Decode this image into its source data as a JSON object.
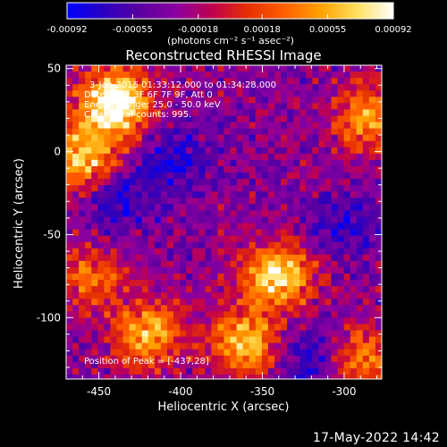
{
  "chart_data": {
    "type": "heatmap",
    "title": "Reconstructed RHESSI Image",
    "xlabel": "Heliocentric X (arcsec)",
    "ylabel": "Heliocentric Y (arcsec)",
    "xlim": [
      -470,
      -277
    ],
    "ylim": [
      -137,
      52
    ],
    "x_ticks": [
      -450,
      -400,
      -350,
      -300
    ],
    "x_tick_labels": [
      "-450",
      "-400",
      "-350",
      "-300"
    ],
    "y_ticks": [
      50,
      0,
      -50,
      -100
    ],
    "y_tick_labels": [
      "50",
      "0",
      "-50",
      "-100"
    ],
    "colorbar": {
      "range": [
        -0.00092,
        0.00092
      ],
      "ticks": [
        -0.00092,
        -0.00055,
        -0.00018,
        0.00018,
        0.00055,
        0.00092
      ],
      "tick_labels": [
        "-0.00092",
        "-0.00055",
        "-0.00018",
        "0.00018",
        "0.00055",
        "0.00092"
      ],
      "unit_label": "(photons cm⁻² s⁻¹ asec⁻²)",
      "colormap": [
        "#0000ff",
        "#2a00c0",
        "#5a00a0",
        "#8a00a0",
        "#c00050",
        "#e63000",
        "#ff6000",
        "#ffa000",
        "#ffe060",
        "#ffffff"
      ]
    },
    "annotations": [
      "3-Jan-2015 01:33:12.000 to 01:34:28.000",
      "Detectors: 3F 6F 7F 9F, Att 0",
      "Energy Range: 25.0 - 50.0 keV",
      "Clean    Total counts: 995."
    ],
    "peak_label": "Position of Peak = [-437,28]",
    "peak": [
      -437,
      28
    ],
    "bright_regions": [
      {
        "x": -440,
        "y": 30,
        "intensity": 1.0
      },
      {
        "x": -460,
        "y": -5,
        "intensity": 0.75
      },
      {
        "x": -340,
        "y": -75,
        "intensity": 0.8
      },
      {
        "x": -360,
        "y": -115,
        "intensity": 0.7
      },
      {
        "x": -420,
        "y": -110,
        "intensity": 0.65
      },
      {
        "x": -285,
        "y": 20,
        "intensity": 0.6
      },
      {
        "x": -290,
        "y": -125,
        "intensity": 0.55
      },
      {
        "x": -455,
        "y": -75,
        "intensity": 0.45
      }
    ],
    "dim_regions": [
      {
        "x": -440,
        "y": -30,
        "intensity": 0.1
      },
      {
        "x": -405,
        "y": -5,
        "intensity": 0.12
      },
      {
        "x": -320,
        "y": -125,
        "intensity": 0.08
      },
      {
        "x": -300,
        "y": -45,
        "intensity": 0.15
      }
    ]
  },
  "footer": {
    "timestamp": "17-May-2022 14:42"
  }
}
